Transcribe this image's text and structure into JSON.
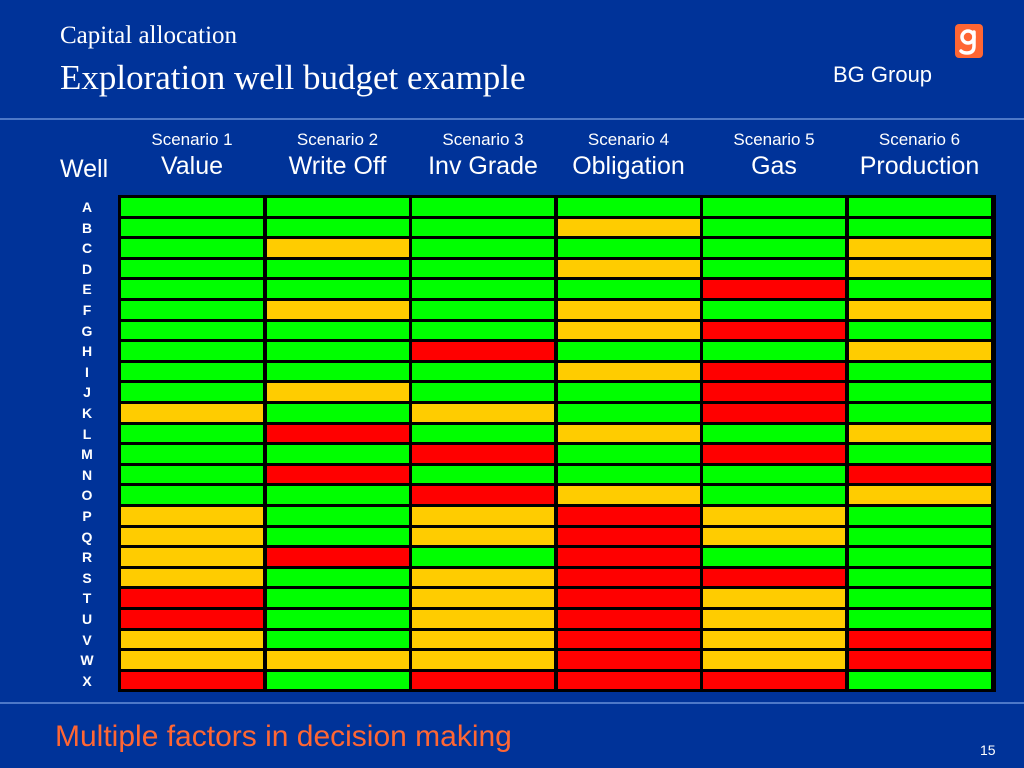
{
  "header": {
    "subtitle": "Capital allocation",
    "title": "Exploration well budget example",
    "brand": "BG Group"
  },
  "table": {
    "row_header": "Well",
    "columns": [
      {
        "number": "Scenario 1",
        "name": "Value"
      },
      {
        "number": "Scenario 2",
        "name": "Write Off"
      },
      {
        "number": "Scenario 3",
        "name": "Inv Grade"
      },
      {
        "number": "Scenario 4",
        "name": "Obligation"
      },
      {
        "number": "Scenario 5",
        "name": "Gas"
      },
      {
        "number": "Scenario 6",
        "name": "Production"
      }
    ],
    "rows": [
      "A",
      "B",
      "C",
      "D",
      "E",
      "F",
      "G",
      "H",
      "I",
      "J",
      "K",
      "L",
      "M",
      "N",
      "O",
      "P",
      "Q",
      "R",
      "S",
      "T",
      "U",
      "V",
      "W",
      "X"
    ],
    "colors": {
      "G": "#00ff00",
      "Y": "#ffcc00",
      "R": "#ff0000"
    },
    "cells": [
      [
        "G",
        "G",
        "G",
        "G",
        "G",
        "G"
      ],
      [
        "G",
        "G",
        "G",
        "Y",
        "G",
        "G"
      ],
      [
        "G",
        "Y",
        "G",
        "G",
        "G",
        "Y"
      ],
      [
        "G",
        "G",
        "G",
        "Y",
        "G",
        "Y"
      ],
      [
        "G",
        "G",
        "G",
        "G",
        "R",
        "G"
      ],
      [
        "G",
        "Y",
        "G",
        "Y",
        "G",
        "Y"
      ],
      [
        "G",
        "G",
        "G",
        "Y",
        "R",
        "G"
      ],
      [
        "G",
        "G",
        "R",
        "G",
        "G",
        "Y"
      ],
      [
        "G",
        "G",
        "G",
        "Y",
        "R",
        "G"
      ],
      [
        "G",
        "Y",
        "G",
        "G",
        "R",
        "G"
      ],
      [
        "Y",
        "G",
        "Y",
        "G",
        "R",
        "G"
      ],
      [
        "G",
        "R",
        "G",
        "Y",
        "G",
        "Y"
      ],
      [
        "G",
        "G",
        "R",
        "G",
        "R",
        "G"
      ],
      [
        "G",
        "R",
        "G",
        "G",
        "G",
        "R"
      ],
      [
        "G",
        "G",
        "R",
        "Y",
        "G",
        "Y"
      ],
      [
        "Y",
        "G",
        "Y",
        "R",
        "Y",
        "G"
      ],
      [
        "Y",
        "G",
        "Y",
        "R",
        "Y",
        "G"
      ],
      [
        "Y",
        "R",
        "G",
        "R",
        "G",
        "G"
      ],
      [
        "Y",
        "G",
        "Y",
        "R",
        "R",
        "G"
      ],
      [
        "R",
        "G",
        "Y",
        "R",
        "Y",
        "G"
      ],
      [
        "R",
        "G",
        "Y",
        "R",
        "Y",
        "G"
      ],
      [
        "Y",
        "G",
        "Y",
        "R",
        "Y",
        "R"
      ],
      [
        "Y",
        "Y",
        "Y",
        "R",
        "Y",
        "R"
      ],
      [
        "R",
        "G",
        "R",
        "R",
        "R",
        "G"
      ]
    ]
  },
  "footer": {
    "text": "Multiple factors in decision making",
    "page": "15"
  }
}
